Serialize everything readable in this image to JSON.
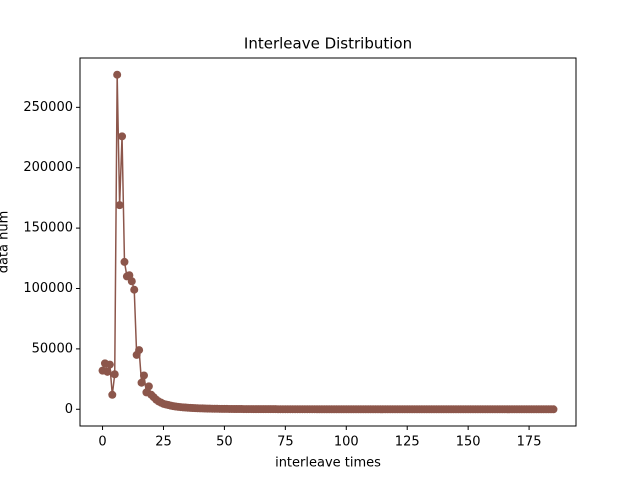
{
  "chart_data": {
    "type": "line",
    "title": "Interleave Distribution",
    "xlabel": "interleave times",
    "ylabel": "data num",
    "x": [
      0,
      1,
      2,
      3,
      4,
      5,
      6,
      7,
      8,
      9,
      10,
      11,
      12,
      13,
      14,
      15,
      16,
      17,
      18,
      19,
      20,
      21,
      22,
      23,
      24,
      25,
      26,
      27,
      28,
      29,
      30,
      31,
      32,
      33,
      34,
      35,
      36,
      37,
      38,
      39,
      40,
      41,
      42,
      43,
      44,
      45,
      46,
      47,
      48,
      49,
      50,
      51,
      52,
      53,
      54,
      55,
      56,
      57,
      58,
      59,
      60,
      61,
      62,
      63,
      64,
      65,
      66,
      67,
      68,
      69,
      70,
      71,
      72,
      73,
      74,
      75,
      76,
      77,
      78,
      79,
      80,
      81,
      82,
      83,
      84,
      85,
      86,
      87,
      88,
      89,
      90,
      91,
      92,
      93,
      94,
      95,
      96,
      97,
      98,
      99,
      100,
      101,
      102,
      103,
      104,
      105,
      106,
      107,
      108,
      109,
      110,
      111,
      112,
      113,
      114,
      115,
      116,
      117,
      118,
      119,
      120,
      121,
      122,
      123,
      124,
      125,
      126,
      127,
      128,
      129,
      130,
      131,
      132,
      133,
      134,
      135,
      136,
      137,
      138,
      139,
      140,
      141,
      142,
      143,
      144,
      145,
      146,
      147,
      148,
      149,
      150,
      151,
      152,
      153,
      154,
      155,
      156,
      157,
      158,
      159,
      160,
      161,
      162,
      163,
      164,
      165,
      166,
      167,
      168,
      169,
      170,
      171,
      172,
      173,
      174,
      175,
      176,
      177,
      178,
      179,
      180,
      181,
      182,
      183,
      184,
      185
    ],
    "values": [
      32000,
      38000,
      31000,
      37000,
      12000,
      29000,
      277000,
      169000,
      226000,
      122000,
      110000,
      111000,
      106000,
      99000,
      45000,
      49000,
      22000,
      28000,
      14000,
      19000,
      12000,
      10000,
      8000,
      6500,
      5500,
      4500,
      4000,
      3500,
      3000,
      2600,
      2300,
      2000,
      1800,
      1600,
      1450,
      1300,
      1150,
      1050,
      950,
      850,
      780,
      700,
      640,
      580,
      530,
      480,
      440,
      400,
      370,
      340,
      310,
      290,
      270,
      250,
      230,
      210,
      200,
      185,
      170,
      160,
      150,
      140,
      130,
      120,
      115,
      110,
      100,
      95,
      90,
      85,
      80,
      75,
      70,
      66,
      62,
      58,
      55,
      52,
      49,
      46,
      44,
      42,
      40,
      38,
      36,
      34,
      33,
      32,
      30,
      29,
      28,
      27,
      26,
      25,
      24,
      23,
      22,
      21,
      20,
      20,
      19,
      18,
      18,
      17,
      17,
      16,
      16,
      15,
      15,
      14,
      14,
      13,
      13,
      13,
      12,
      12,
      12,
      11,
      11,
      11,
      10,
      10,
      10,
      9,
      9,
      9,
      9,
      8,
      8,
      8,
      8,
      8,
      7,
      7,
      7,
      7,
      7,
      6,
      6,
      6,
      6,
      6,
      6,
      5,
      5,
      5,
      5,
      5,
      5,
      4,
      4,
      4,
      4,
      4,
      4,
      4,
      4,
      3,
      3,
      3,
      3,
      3,
      3,
      3,
      3,
      3,
      3,
      2,
      2,
      2,
      2,
      2,
      2,
      2,
      2,
      2,
      2,
      2,
      1,
      1,
      1,
      1,
      1,
      1,
      1,
      1
    ],
    "color": "#8c564b",
    "xlim": [
      -9.25,
      194.25
    ],
    "xticks": [
      0,
      25,
      50,
      75,
      100,
      125,
      150,
      175
    ],
    "ylim": [
      -13850,
      290850
    ],
    "yticks": [
      0,
      50000,
      100000,
      150000,
      200000,
      250000
    ]
  }
}
